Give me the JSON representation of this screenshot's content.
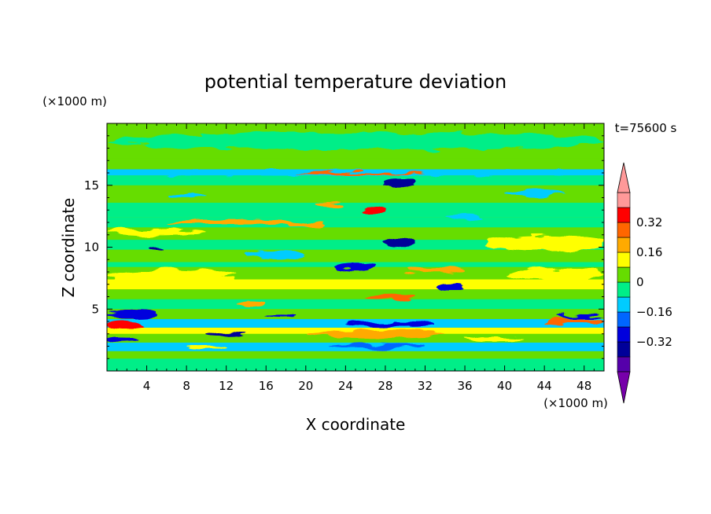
{
  "chart_data": {
    "type": "heatmap",
    "title": "potential temperature deviation",
    "xlabel": "X coordinate",
    "ylabel": "Z coordinate",
    "x_unit": "(×1000 m)",
    "y_unit": "(×1000 m)",
    "time_label": "t=75600 s",
    "xlim": [
      0,
      50
    ],
    "ylim": [
      0,
      20
    ],
    "x_ticks": [
      4,
      8,
      12,
      16,
      20,
      24,
      28,
      32,
      36,
      40,
      44,
      48
    ],
    "x_tick_labels": [
      "4",
      "8",
      "12",
      "16",
      "20",
      "24",
      "28",
      "32",
      "36",
      "40",
      "44",
      "48"
    ],
    "y_ticks": [
      5,
      10,
      15
    ],
    "y_tick_labels": [
      "5",
      "10",
      "15"
    ],
    "colorbar": {
      "levels": [
        -0.48,
        -0.4,
        -0.32,
        -0.24,
        -0.16,
        -0.08,
        0,
        0.08,
        0.16,
        0.24,
        0.32,
        0.4
      ],
      "colors": [
        "#5500aa",
        "#000099",
        "#0000dd",
        "#0066ff",
        "#00ccff",
        "#00ee88",
        "#66dd00",
        "#ffff00",
        "#ffaa00",
        "#ff6600",
        "#ff0000",
        "#ff9999"
      ],
      "under_color": "#7700aa",
      "over_color": "#ff9999",
      "tick_values": [
        -0.32,
        -0.16,
        0,
        0.16,
        0.32
      ],
      "tick_labels": [
        "−0.32",
        "−0.16",
        "0",
        "0.16",
        "0.32"
      ]
    },
    "field": {
      "background_color": "#66dd00",
      "bands": [
        {
          "z0": 0.0,
          "z1": 1.0,
          "color": "#00ee88"
        },
        {
          "z0": 1.0,
          "z1": 1.6,
          "color": "#66dd00"
        },
        {
          "z0": 1.6,
          "z1": 2.3,
          "color": "#00ccff"
        },
        {
          "z0": 2.3,
          "z1": 3.0,
          "color": "#66dd00"
        },
        {
          "z0": 3.0,
          "z1": 3.5,
          "color": "#ffff00"
        },
        {
          "z0": 3.5,
          "z1": 4.2,
          "color": "#00ccff"
        },
        {
          "z0": 4.2,
          "z1": 5.0,
          "color": "#66dd00"
        },
        {
          "z0": 5.0,
          "z1": 5.8,
          "color": "#00ee88"
        },
        {
          "z0": 5.8,
          "z1": 6.6,
          "color": "#66dd00"
        },
        {
          "z0": 6.6,
          "z1": 7.4,
          "color": "#ffff00"
        },
        {
          "z0": 7.4,
          "z1": 8.4,
          "color": "#66dd00"
        },
        {
          "z0": 8.4,
          "z1": 8.8,
          "color": "#00ee88"
        },
        {
          "z0": 8.8,
          "z1": 9.8,
          "color": "#66dd00"
        },
        {
          "z0": 9.8,
          "z1": 10.6,
          "color": "#00ee88"
        },
        {
          "z0": 10.6,
          "z1": 11.6,
          "color": "#66dd00"
        },
        {
          "z0": 11.6,
          "z1": 12.4,
          "color": "#00ee88"
        },
        {
          "z0": 12.4,
          "z1": 13.6,
          "color": "#00ee88"
        },
        {
          "z0": 13.6,
          "z1": 15.0,
          "color": "#66dd00"
        },
        {
          "z0": 15.0,
          "z1": 15.8,
          "color": "#00ee88"
        },
        {
          "z0": 15.8,
          "z1": 16.3,
          "color": "#00ccff"
        },
        {
          "z0": 16.3,
          "z1": 17.2,
          "color": "#66dd00"
        },
        {
          "z0": 17.2,
          "z1": 20.0,
          "color": "#66dd00"
        }
      ],
      "blobs": [
        {
          "x": 0,
          "x2": 13,
          "z": 7.6,
          "dz": 1.3,
          "color": "#ffff00"
        },
        {
          "x": 40,
          "x2": 50,
          "z": 7.8,
          "dz": 1.0,
          "color": "#ffff00"
        },
        {
          "x": 38,
          "x2": 50,
          "z": 10.3,
          "dz": 1.2,
          "color": "#ffff00"
        },
        {
          "x": 0,
          "x2": 10,
          "z": 11.2,
          "dz": 0.6,
          "color": "#ffff00"
        },
        {
          "x": 6,
          "x2": 20,
          "z": 12.0,
          "dz": 0.5,
          "color": "#ffaa00"
        },
        {
          "x": 0,
          "x2": 50,
          "z": 16.0,
          "dz": 0.4,
          "color": "#00ccff"
        },
        {
          "x": 19,
          "x2": 32,
          "z": 16.0,
          "dz": 0.25,
          "color": "#ff6600"
        },
        {
          "x": 0,
          "x2": 50,
          "z": 18.6,
          "dz": 1.4,
          "color": "#00ee88"
        },
        {
          "x": 0,
          "x2": 4,
          "z": 3.6,
          "dz": 0.7,
          "color": "#ff0000"
        },
        {
          "x": 0,
          "x2": 5,
          "z": 4.6,
          "dz": 0.5,
          "color": "#0000dd"
        },
        {
          "x": 0,
          "x2": 3,
          "z": 2.6,
          "dz": 0.4,
          "color": "#0000dd"
        },
        {
          "x": 10,
          "x2": 14,
          "z": 3.0,
          "dz": 0.4,
          "color": "#000099"
        },
        {
          "x": 20,
          "x2": 34,
          "z": 3.0,
          "dz": 0.5,
          "color": "#ffaa00"
        },
        {
          "x": 22,
          "x2": 32,
          "z": 2.0,
          "dz": 0.4,
          "color": "#0066ff"
        },
        {
          "x": 24,
          "x2": 33,
          "z": 3.8,
          "dz": 0.4,
          "color": "#0000dd"
        },
        {
          "x": 26,
          "x2": 31,
          "z": 6.0,
          "dz": 0.5,
          "color": "#ff6600"
        },
        {
          "x": 23,
          "x2": 27,
          "z": 8.4,
          "dz": 0.5,
          "color": "#0000dd"
        },
        {
          "x": 28,
          "x2": 31,
          "z": 10.4,
          "dz": 0.9,
          "color": "#000099"
        },
        {
          "x": 26,
          "x2": 28,
          "z": 13.0,
          "dz": 0.6,
          "color": "#ff0000"
        },
        {
          "x": 21,
          "x2": 24,
          "z": 13.4,
          "dz": 0.5,
          "color": "#ffaa00"
        },
        {
          "x": 28,
          "x2": 31,
          "z": 15.2,
          "dz": 0.4,
          "color": "#000099"
        },
        {
          "x": 4,
          "x2": 6,
          "z": 9.8,
          "dz": 0.4,
          "color": "#000099"
        },
        {
          "x": 33,
          "x2": 36,
          "z": 6.8,
          "dz": 0.4,
          "color": "#0000dd"
        },
        {
          "x": 44,
          "x2": 50,
          "z": 4.0,
          "dz": 0.5,
          "color": "#ff6600"
        },
        {
          "x": 45,
          "x2": 50,
          "z": 4.4,
          "dz": 0.3,
          "color": "#0000dd"
        },
        {
          "x": 13,
          "x2": 16,
          "z": 5.4,
          "dz": 0.5,
          "color": "#ffaa00"
        },
        {
          "x": 18,
          "x2": 22,
          "z": 11.8,
          "dz": 0.4,
          "color": "#ffaa00"
        },
        {
          "x": 34,
          "x2": 38,
          "z": 12.4,
          "dz": 0.6,
          "color": "#00ccff"
        },
        {
          "x": 14,
          "x2": 20,
          "z": 9.4,
          "dz": 0.5,
          "color": "#00ccff"
        },
        {
          "x": 6,
          "x2": 10,
          "z": 14.2,
          "dz": 0.5,
          "color": "#00ccff"
        },
        {
          "x": 40,
          "x2": 46,
          "z": 14.4,
          "dz": 0.5,
          "color": "#00ccff"
        },
        {
          "x": 30,
          "x2": 36,
          "z": 8.2,
          "dz": 0.5,
          "color": "#ffaa00"
        },
        {
          "x": 8,
          "x2": 12,
          "z": 2.0,
          "dz": 0.4,
          "color": "#ffff00"
        },
        {
          "x": 36,
          "x2": 42,
          "z": 2.6,
          "dz": 0.4,
          "color": "#ffff00"
        },
        {
          "x": 16,
          "x2": 19,
          "z": 4.4,
          "dz": 0.3,
          "color": "#0000dd"
        }
      ]
    }
  }
}
